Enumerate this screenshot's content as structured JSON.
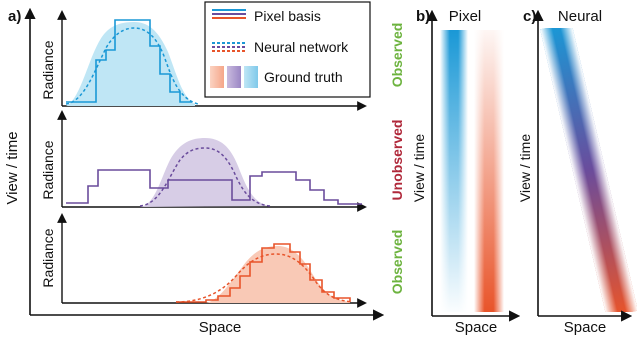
{
  "panels": {
    "a": {
      "tag": "a)",
      "xlabel": "Space",
      "ylabel": "View / time",
      "row_ylabel": "Radiance"
    },
    "b": {
      "tag": "b)",
      "title": "Pixel",
      "xlabel": "Space",
      "ylabel": "View / time"
    },
    "c": {
      "tag": "c)",
      "title": "Neural",
      "xlabel": "Space",
      "ylabel": "View / time"
    }
  },
  "rows": [
    {
      "status": "Observed",
      "status_color": "#6db33f"
    },
    {
      "status": "Unobserved",
      "status_color": "#b0283a"
    },
    {
      "status": "Observed",
      "status_color": "#6db33f"
    }
  ],
  "legend": [
    {
      "label": "Pixel basis",
      "style": "solid"
    },
    {
      "label": "Neural network",
      "style": "dashed"
    },
    {
      "label": "Ground truth",
      "style": "fill"
    }
  ],
  "colors": {
    "blue": "#1a98d6",
    "purple": "#6a4c9c",
    "red": "#e8542a",
    "blue_fill": "#bfe6f5",
    "purple_fill": "#d7cde6",
    "red_fill": "#f9c9b6"
  }
}
